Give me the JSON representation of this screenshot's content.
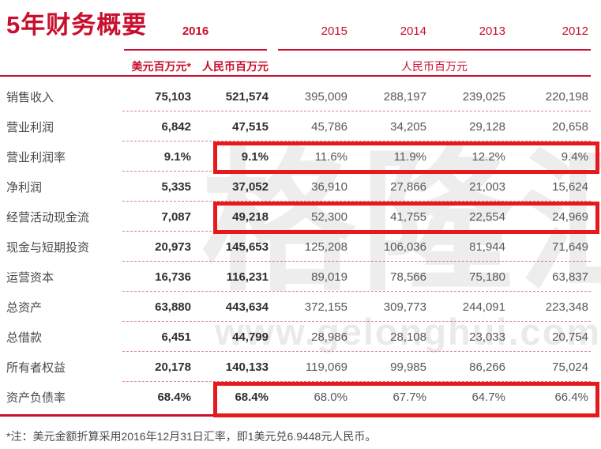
{
  "page": {
    "title": "5年财务概要",
    "footnote": "*注：美元金额折算采用2016年12月31日汇率，即1美元兑6.9448元人民币。"
  },
  "colors": {
    "brand_red": "#C8102E",
    "highlight_box_red": "#E61A1C",
    "value_2016_text": "#2F2F30",
    "value_year_text": "#565759",
    "label_text": "#4A4A4B",
    "watermark_gray": "#828282"
  },
  "header": {
    "group_2016": "2016",
    "col_usd": "美元百万元*",
    "col_rmb_2016": "人民币百万元",
    "col_rmb_years": "人民币百万元",
    "years": [
      "2015",
      "2014",
      "2013",
      "2012"
    ]
  },
  "table": {
    "rows": [
      {
        "label": "销售收入",
        "usd": "75,103",
        "rmb": "521,574",
        "y2015": "395,009",
        "y2014": "288,197",
        "y2013": "239,025",
        "y2012": "220,198",
        "highlighted": false
      },
      {
        "label": "营业利润",
        "usd": "6,842",
        "rmb": "47,515",
        "y2015": "45,786",
        "y2014": "34,205",
        "y2013": "29,128",
        "y2012": "20,658",
        "highlighted": false
      },
      {
        "label": "营业利润率",
        "usd": "9.1%",
        "rmb": "9.1%",
        "y2015": "11.6%",
        "y2014": "11.9%",
        "y2013": "12.2%",
        "y2012": "9.4%",
        "highlighted": true
      },
      {
        "label": "净利润",
        "usd": "5,335",
        "rmb": "37,052",
        "y2015": "36,910",
        "y2014": "27,866",
        "y2013": "21,003",
        "y2012": "15,624",
        "highlighted": false
      },
      {
        "label": "经营活动现金流",
        "usd": "7,087",
        "rmb": "49,218",
        "y2015": "52,300",
        "y2014": "41,755",
        "y2013": "22,554",
        "y2012": "24,969",
        "highlighted": true
      },
      {
        "label": "现金与短期投资",
        "usd": "20,973",
        "rmb": "145,653",
        "y2015": "125,208",
        "y2014": "106,036",
        "y2013": "81,944",
        "y2012": "71,649",
        "highlighted": false
      },
      {
        "label": "运营资本",
        "usd": "16,736",
        "rmb": "116,231",
        "y2015": "89,019",
        "y2014": "78,566",
        "y2013": "75,180",
        "y2012": "63,837",
        "highlighted": false
      },
      {
        "label": "总资产",
        "usd": "63,880",
        "rmb": "443,634",
        "y2015": "372,155",
        "y2014": "309,773",
        "y2013": "244,091",
        "y2012": "223,348",
        "highlighted": false
      },
      {
        "label": "总借款",
        "usd": "6,451",
        "rmb": "44,799",
        "y2015": "28,986",
        "y2014": "28,108",
        "y2013": "23,033",
        "y2012": "20,754",
        "highlighted": false
      },
      {
        "label": "所有者权益",
        "usd": "20,178",
        "rmb": "140,133",
        "y2015": "119,069",
        "y2014": "99,985",
        "y2013": "86,266",
        "y2012": "75,024",
        "highlighted": false
      },
      {
        "label": "资产负债率",
        "usd": "68.4%",
        "rmb": "68.4%",
        "y2015": "68.0%",
        "y2014": "67.7%",
        "y2013": "64.7%",
        "y2012": "66.4%",
        "highlighted": true
      }
    ]
  },
  "watermark": {
    "big_text": "格隆汇",
    "url_text": "www.gelonghui.com"
  }
}
